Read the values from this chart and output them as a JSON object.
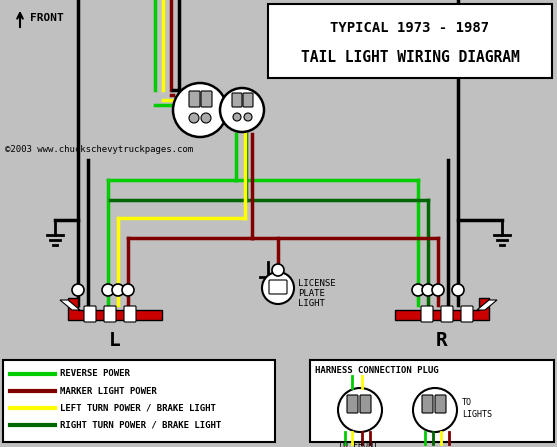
{
  "title_line1": "TYPICAL 1973 - 1987",
  "title_line2": "TAIL LIGHT WIRING DIAGRAM",
  "copyright": "©2003 www.chuckschevytruckpages.com",
  "bg_color": "#c0c0c0",
  "wire_colors": {
    "green_bright": "#00cc00",
    "dark_red": "#800000",
    "yellow": "#ffff00",
    "green_dark": "#006600",
    "black": "#000000",
    "red_bar": "#cc0000"
  },
  "legend_items": [
    {
      "color": "#00cc00",
      "label": "REVERSE POWER"
    },
    {
      "color": "#800000",
      "label": "MARKER LIGHT POWER"
    },
    {
      "color": "#ffff00",
      "label": "LEFT TURN POWER / BRAKE LIGHT"
    },
    {
      "color": "#006600",
      "label": "RIGHT TURN POWER / BRAKE LIGHT"
    }
  ]
}
